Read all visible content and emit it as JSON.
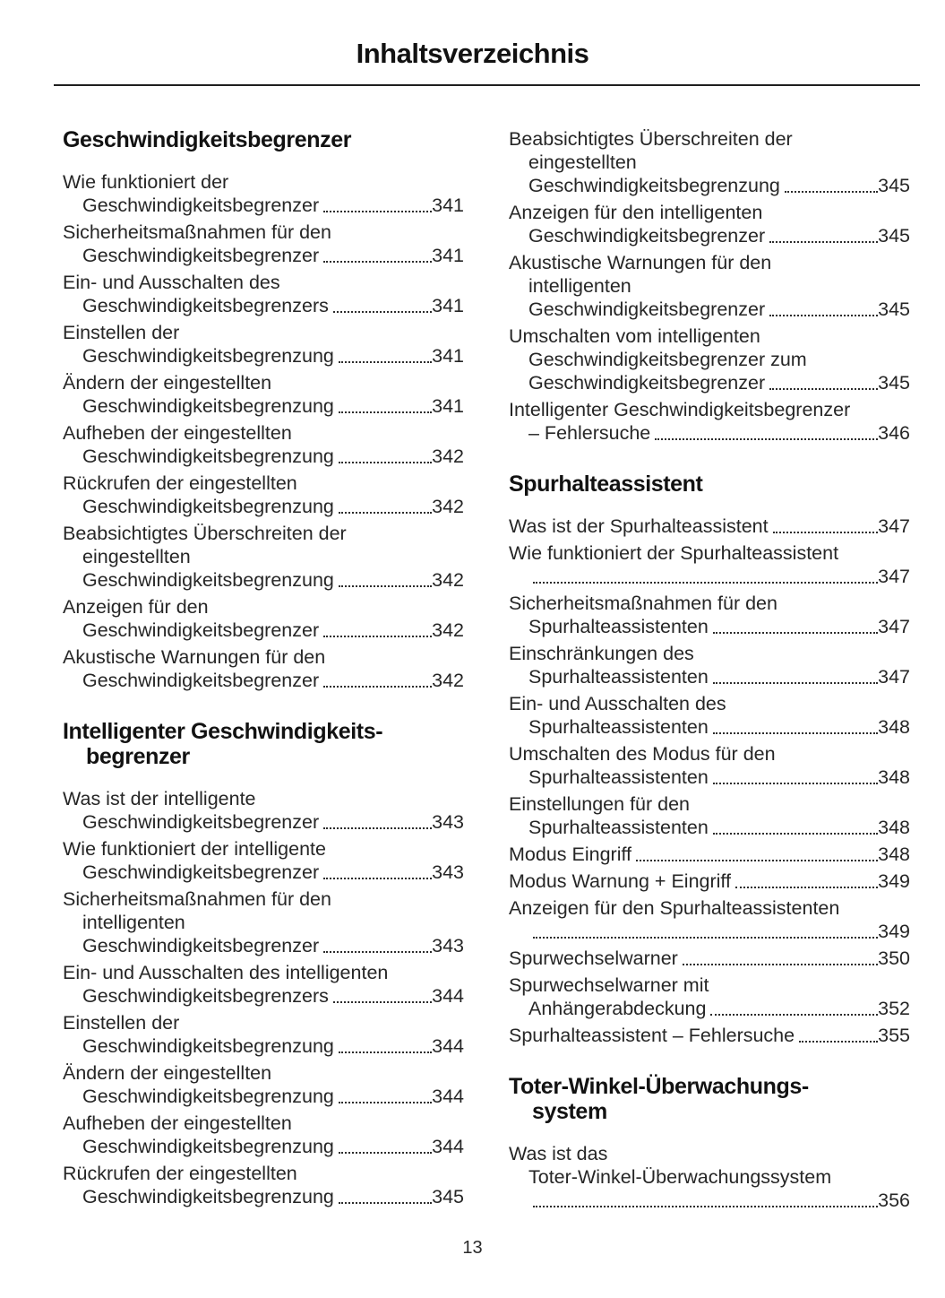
{
  "page": {
    "title": "Inhaltsverzeichnis",
    "footer_page_number": "13",
    "ink_color": "#1f1f1f",
    "background_color": "#ffffff"
  },
  "columns": [
    {
      "sections": [
        {
          "heading_lines": [
            "Geschwindigkeitsbegrenzer"
          ],
          "entries": [
            {
              "lines": [
                "Wie funktioniert der"
              ],
              "last": "Geschwindigkeitsbegrenzer",
              "page": "341"
            },
            {
              "lines": [
                "Sicherheitsmaßnahmen für den"
              ],
              "last": "Geschwindigkeitsbegrenzer",
              "page": "341"
            },
            {
              "lines": [
                "Ein- und Ausschalten des"
              ],
              "last": "Geschwindigkeitsbegrenzers",
              "page": "341"
            },
            {
              "lines": [
                "Einstellen der"
              ],
              "last": "Geschwindigkeitsbegrenzung",
              "page": "341"
            },
            {
              "lines": [
                "Ändern der eingestellten"
              ],
              "last": "Geschwindigkeitsbegrenzung",
              "page": "341"
            },
            {
              "lines": [
                "Aufheben der eingestellten"
              ],
              "last": "Geschwindigkeitsbegrenzung",
              "page": "342"
            },
            {
              "lines": [
                "Rückrufen der eingestellten"
              ],
              "last": "Geschwindigkeitsbegrenzung",
              "page": "342"
            },
            {
              "lines": [
                "Beabsichtigtes Überschreiten der",
                "eingestellten"
              ],
              "last": "Geschwindigkeitsbegrenzung",
              "page": "342"
            },
            {
              "lines": [
                "Anzeigen für den"
              ],
              "last": "Geschwindigkeitsbegrenzer",
              "page": "342"
            },
            {
              "lines": [
                "Akustische Warnungen für den"
              ],
              "last": "Geschwindigkeitsbegrenzer",
              "page": "342"
            }
          ]
        },
        {
          "heading_lines": [
            "Intelligenter Geschwindigkeits-",
            "begrenzer"
          ],
          "entries": [
            {
              "lines": [
                "Was ist der intelligente"
              ],
              "last": "Geschwindigkeitsbegrenzer",
              "page": "343"
            },
            {
              "lines": [
                "Wie funktioniert der intelligente"
              ],
              "last": "Geschwindigkeitsbegrenzer",
              "page": "343"
            },
            {
              "lines": [
                "Sicherheitsmaßnahmen für den",
                "intelligenten"
              ],
              "last": "Geschwindigkeitsbegrenzer",
              "page": "343"
            },
            {
              "lines": [
                "Ein- und Ausschalten des intelligenten"
              ],
              "last": "Geschwindigkeitsbegrenzers",
              "page": "344"
            },
            {
              "lines": [
                "Einstellen der"
              ],
              "last": "Geschwindigkeitsbegrenzung",
              "page": "344"
            },
            {
              "lines": [
                "Ändern der eingestellten"
              ],
              "last": "Geschwindigkeitsbegrenzung",
              "page": "344"
            },
            {
              "lines": [
                "Aufheben der eingestellten"
              ],
              "last": "Geschwindigkeitsbegrenzung",
              "page": "344"
            },
            {
              "lines": [
                "Rückrufen der eingestellten"
              ],
              "last": "Geschwindigkeitsbegrenzung",
              "page": "345"
            }
          ]
        }
      ]
    },
    {
      "sections": [
        {
          "heading_lines": [],
          "entries": [
            {
              "lines": [
                "Beabsichtigtes Überschreiten der",
                "eingestellten"
              ],
              "last": "Geschwindigkeitsbegrenzung",
              "page": "345"
            },
            {
              "lines": [
                "Anzeigen für den intelligenten"
              ],
              "last": "Geschwindigkeitsbegrenzer",
              "page": "345"
            },
            {
              "lines": [
                "Akustische Warnungen für den",
                "intelligenten"
              ],
              "last": "Geschwindigkeitsbegrenzer",
              "page": "345"
            },
            {
              "lines": [
                "Umschalten vom intelligenten",
                "Geschwindigkeitsbegrenzer zum"
              ],
              "last": "Geschwindigkeitsbegrenzer",
              "page": "345"
            },
            {
              "lines": [
                "Intelligenter Geschwindigkeitsbegrenzer"
              ],
              "last": "– Fehlersuche",
              "page": "346"
            }
          ]
        },
        {
          "heading_lines": [
            "Spurhalteassistent"
          ],
          "entries": [
            {
              "lines": [],
              "last": "Was ist der Spurhalteassistent",
              "page": "347"
            },
            {
              "lines": [
                "Wie funktioniert der Spurhalteassistent"
              ],
              "last": "",
              "page": "347"
            },
            {
              "lines": [
                "Sicherheitsmaßnahmen für den"
              ],
              "last": "Spurhalteassistenten",
              "page": "347"
            },
            {
              "lines": [
                "Einschränkungen des"
              ],
              "last": "Spurhalteassistenten",
              "page": "347"
            },
            {
              "lines": [
                "Ein- und Ausschalten des"
              ],
              "last": "Spurhalteassistenten",
              "page": "348"
            },
            {
              "lines": [
                "Umschalten des Modus für den"
              ],
              "last": "Spurhalteassistenten",
              "page": "348"
            },
            {
              "lines": [
                "Einstellungen für den"
              ],
              "last": "Spurhalteassistenten",
              "page": "348"
            },
            {
              "lines": [],
              "last": "Modus Eingriff",
              "page": "348"
            },
            {
              "lines": [],
              "last": "Modus Warnung + Eingriff",
              "page": "349"
            },
            {
              "lines": [
                "Anzeigen für den Spurhalteassistenten"
              ],
              "last": "",
              "page": "349"
            },
            {
              "lines": [],
              "last": "Spurwechselwarner",
              "page": "350"
            },
            {
              "lines": [
                "Spurwechselwarner mit"
              ],
              "last": "Anhängerabdeckung",
              "page": "352"
            },
            {
              "lines": [],
              "last": "Spurhalteassistent – Fehlersuche",
              "page": "355"
            }
          ]
        },
        {
          "heading_lines": [
            "Toter-Winkel-Überwachungs-",
            "system"
          ],
          "entries": [
            {
              "lines": [
                "Was ist das",
                "Toter-Winkel-Überwachungssystem"
              ],
              "last": "",
              "page": "356"
            }
          ]
        }
      ]
    }
  ]
}
